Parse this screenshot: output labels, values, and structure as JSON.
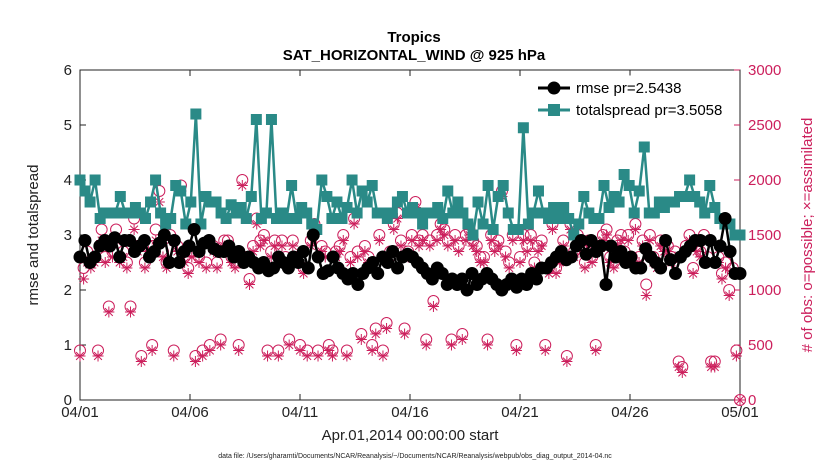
{
  "chart_data": {
    "type": "line",
    "title_line1": "Tropics",
    "title_line2": "SAT_HORIZONTAL_WIND @ 925 hPa",
    "xlabel": "Apr.01,2014 00:00:00 start",
    "ylabel_left": "rmse and totalspread",
    "ylabel_right": "# of obs: o=possible; ×=assimilated",
    "x_range": [
      0,
      30
    ],
    "y_left_range": [
      0,
      6
    ],
    "y_right_range": [
      0,
      3000
    ],
    "x_ticks": [
      0,
      5,
      10,
      15,
      20,
      25,
      30
    ],
    "x_tick_labels": [
      "04/01",
      "04/06",
      "04/11",
      "04/16",
      "04/21",
      "04/26",
      "05/01"
    ],
    "y_left_ticks": [
      0,
      1,
      2,
      3,
      4,
      5,
      6
    ],
    "y_left_tick_labels": [
      "0",
      "1",
      "2",
      "3",
      "4",
      "5",
      "6"
    ],
    "y_right_ticks": [
      0,
      500,
      1000,
      1500,
      2000,
      2500,
      3000
    ],
    "y_right_tick_labels": [
      "0",
      "500",
      "1000",
      "1500",
      "2000",
      "2500",
      "3000"
    ],
    "footer": "data file: /Users/gharamti/Documents/NCAR/Reanalysis/~/Documents/NCAR/Reanalysis/webpub/obs_diag_output_2014-04.nc",
    "time_step_days": 0.25,
    "series": [
      {
        "name": "rmse",
        "legend": "rmse pr=2.5438",
        "axis": "left",
        "color": "#000000",
        "marker": "circle",
        "values": [
          2.6,
          2.9,
          2.5,
          2.6,
          2.8,
          2.9,
          2.8,
          2.95,
          2.6,
          2.9,
          2.9,
          2.7,
          2.8,
          2.9,
          2.6,
          2.7,
          2.85,
          3.0,
          2.5,
          2.9,
          2.5,
          2.7,
          2.8,
          3.1,
          2.7,
          2.85,
          2.9,
          2.75,
          2.7,
          2.7,
          2.8,
          2.6,
          2.7,
          2.5,
          2.6,
          2.5,
          2.4,
          2.5,
          2.35,
          2.4,
          2.6,
          2.5,
          2.4,
          2.6,
          2.5,
          2.7,
          2.4,
          3.0,
          2.6,
          2.3,
          2.35,
          2.6,
          2.4,
          2.3,
          2.2,
          2.3,
          2.1,
          2.3,
          2.4,
          2.5,
          2.3,
          2.6,
          2.5,
          2.7,
          2.4,
          2.6,
          2.65,
          2.6,
          2.5,
          2.4,
          2.3,
          2.2,
          2.4,
          2.3,
          2.1,
          2.2,
          2.1,
          2.2,
          2.0,
          2.3,
          2.1,
          2.2,
          2.3,
          2.2,
          2.1,
          2.0,
          2.1,
          2.2,
          2.05,
          2.2,
          2.1,
          2.3,
          2.2,
          2.4,
          2.4,
          2.5,
          2.6,
          2.7,
          2.55,
          2.6,
          2.8,
          2.9,
          2.65,
          2.9,
          2.7,
          2.8,
          2.1,
          2.8,
          2.6,
          2.7,
          2.5,
          2.6,
          2.4,
          2.4,
          2.75,
          2.6,
          2.5,
          2.4,
          2.9,
          2.55,
          2.3,
          2.6,
          2.7,
          2.8,
          2.9,
          2.9,
          2.5,
          2.9,
          2.5,
          2.8,
          3.3,
          2.7,
          2.3,
          2.3
        ]
      },
      {
        "name": "totalspread",
        "legend": "totalspread pr=3.5058",
        "axis": "left",
        "color": "#2a8a87",
        "marker": "square",
        "values": [
          4.0,
          3.8,
          3.6,
          4.0,
          3.3,
          3.4,
          3.4,
          3.4,
          3.7,
          3.4,
          3.4,
          3.5,
          3.4,
          3.3,
          3.6,
          4.0,
          3.4,
          3.2,
          3.3,
          3.9,
          3.8,
          3.2,
          3.6,
          5.2,
          3.2,
          3.7,
          3.6,
          3.6,
          3.4,
          3.3,
          3.55,
          3.4,
          3.5,
          3.3,
          3.7,
          5.1,
          3.3,
          3.4,
          5.1,
          3.3,
          3.4,
          3.3,
          3.9,
          3.3,
          3.5,
          3.4,
          3.2,
          3.1,
          4.0,
          3.7,
          3.3,
          3.6,
          3.3,
          3.5,
          4.0,
          3.4,
          3.8,
          3.6,
          3.9,
          3.4,
          3.4,
          3.3,
          3.4,
          3.6,
          3.7,
          3.4,
          3.5,
          3.4,
          3.2,
          3.4,
          3.4,
          3.5,
          3.3,
          3.8,
          3.4,
          3.6,
          3.4,
          3.2,
          3.0,
          3.6,
          3.2,
          3.9,
          3.1,
          3.7,
          3.9,
          3.4,
          3.1,
          3.1,
          4.95,
          3.2,
          3.4,
          3.8,
          3.4,
          3.3,
          3.5,
          3.3,
          3.5,
          3.3,
          3.0,
          3.2,
          3.7,
          3.4,
          3.3,
          3.3,
          3.9,
          3.5,
          3.7,
          3.6,
          4.1,
          3.9,
          3.4,
          3.8,
          4.6,
          3.4,
          3.4,
          3.6,
          3.5,
          3.6,
          3.6,
          3.7,
          3.7,
          4.0,
          3.7,
          3.6,
          3.4,
          3.9,
          3.5,
          3.3,
          3.2,
          3.2,
          3.0,
          3.0
        ]
      },
      {
        "name": "possible",
        "legend": "possible (o)",
        "axis": "right",
        "color": "#cc1f5c",
        "marker": "circle-open",
        "values": [
          450,
          1200,
          1350,
          1250,
          1300,
          450,
          1550,
          1300,
          850,
          1350,
          1550,
          1300,
          1350,
          1250,
          850,
          1650,
          1400,
          400,
          1250,
          1400,
          500,
          1550,
          1900,
          1350,
          1250,
          1500,
          450,
          1400,
          1950,
          1300,
          1200,
          1350,
          400,
          1300,
          450,
          1250,
          500,
          1400,
          1250,
          550,
          1450,
          1450,
          1300,
          1250,
          500,
          2000,
          1300,
          1100,
          1400,
          1650,
          1450,
          1500,
          450,
          1350,
          1450,
          450,
          1450,
          1300,
          550,
          1450,
          1300,
          500,
          1200,
          450,
          1450,
          1600,
          450,
          1400,
          1350,
          500,
          450,
          1350,
          1400,
          1500,
          450,
          1300,
          1650,
          1350,
          600,
          1400,
          1300,
          500,
          650,
          1500,
          450,
          700,
          1350,
          1600,
          1700,
          1450,
          650,
          1350,
          1500,
          1800,
          1450,
          1500,
          550,
          1450,
          900,
          1500,
          1600,
          1550,
          1450,
          550,
          1500,
          1400,
          600,
          1500,
          1550,
          1450,
          1400,
          1300,
          1300,
          550,
          1500,
          1400,
          1450,
          1900,
          1350,
          1250,
          1500,
          500,
          1300,
          1500,
          1400,
          1500,
          1250,
          1400,
          1450,
          500,
          1200,
          1600,
          1200,
          1300,
          1450,
          400,
          1600,
          1350,
          1500,
          1400,
          1250,
          1450,
          1300,
          500,
          1400,
          1500,
          1550,
          1300,
          1250,
          1450,
          1500,
          1350,
          1500,
          1300,
          1600,
          1300,
          1450,
          1050,
          1500,
          1300,
          1250,
          1450,
          1400,
          1400,
          1300,
          1350,
          350,
          300,
          1400,
          1500,
          1200,
          1400,
          1350,
          1500,
          1300,
          350,
          350,
          1300,
          1150,
          1250,
          1000,
          1200,
          450,
          0
        ]
      },
      {
        "name": "assimilated",
        "legend": "assimilated (×)",
        "axis": "right",
        "color": "#cc1f5c",
        "marker": "asterisk",
        "values": [
          400,
          1100,
          1250,
          1200,
          1250,
          400,
          1450,
          1250,
          800,
          1300,
          1450,
          1250,
          1300,
          1200,
          800,
          1550,
          1350,
          350,
          1200,
          1350,
          450,
          1450,
          1800,
          1300,
          1200,
          1450,
          400,
          1350,
          1900,
          1250,
          1150,
          1300,
          350,
          1250,
          400,
          1200,
          450,
          1350,
          1200,
          500,
          1400,
          1400,
          1250,
          1200,
          450,
          1950,
          1250,
          1050,
          1350,
          1600,
          1400,
          1450,
          400,
          1300,
          1400,
          400,
          1400,
          1250,
          500,
          1400,
          1250,
          450,
          1150,
          400,
          1400,
          1550,
          400,
          1350,
          1300,
          450,
          400,
          1300,
          1350,
          1450,
          400,
          1250,
          1600,
          1300,
          550,
          1350,
          1250,
          450,
          600,
          1450,
          400,
          650,
          1300,
          1550,
          1650,
          1400,
          600,
          1300,
          1450,
          1750,
          1400,
          1450,
          500,
          1400,
          850,
          1450,
          1550,
          1500,
          1400,
          500,
          1450,
          1350,
          550,
          1450,
          1500,
          1400,
          1350,
          1250,
          1250,
          500,
          1450,
          1350,
          1400,
          1850,
          1300,
          1200,
          1450,
          450,
          1250,
          1450,
          1350,
          1450,
          1200,
          1350,
          1400,
          450,
          1150,
          1550,
          1150,
          1250,
          1400,
          350,
          1550,
          1300,
          1450,
          1350,
          1200,
          1400,
          1250,
          450,
          1350,
          1450,
          1500,
          1250,
          1200,
          1400,
          1450,
          1300,
          1450,
          1250,
          1550,
          1250,
          1400,
          950,
          1450,
          1250,
          1200,
          1400,
          1350,
          1350,
          1250,
          1300,
          300,
          250,
          1350,
          1450,
          1150,
          1350,
          1300,
          1450,
          1250,
          300,
          300,
          1250,
          1100,
          1200,
          950,
          1150,
          400,
          0
        ]
      }
    ]
  }
}
